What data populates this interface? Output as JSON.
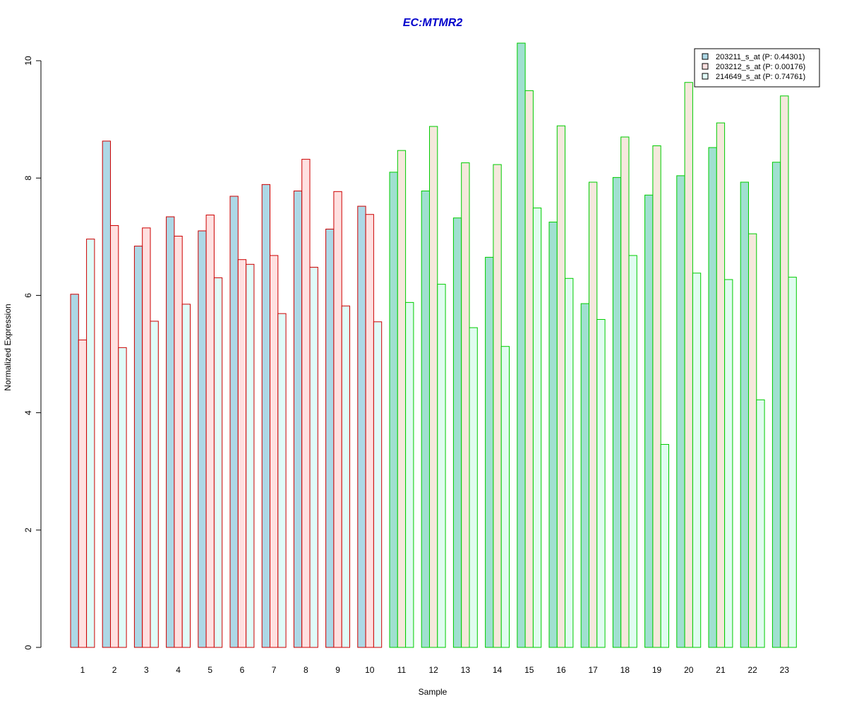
{
  "chart_data": {
    "type": "bar",
    "title": "EC:MTMR2",
    "xlabel": "Sample",
    "ylabel": "Normalized Expression",
    "ylim": [
      0,
      10.3
    ],
    "yticks": [
      0,
      2,
      4,
      6,
      8,
      10
    ],
    "categories": [
      "1",
      "2",
      "3",
      "4",
      "5",
      "6",
      "7",
      "8",
      "9",
      "10",
      "11",
      "12",
      "13",
      "14",
      "15",
      "16",
      "17",
      "18",
      "19",
      "20",
      "21",
      "22",
      "23"
    ],
    "group_border_colors": [
      "#cc0000",
      "#cc0000",
      "#cc0000",
      "#cc0000",
      "#cc0000",
      "#cc0000",
      "#cc0000",
      "#cc0000",
      "#cc0000",
      "#cc0000",
      "#00cc00",
      "#00cc00",
      "#00cc00",
      "#00cc00",
      "#00cc00",
      "#00cc00",
      "#00cc00",
      "#00cc00",
      "#00cc00",
      "#00cc00",
      "#00cc00",
      "#00cc00",
      "#00cc00"
    ],
    "series": [
      {
        "name": "203211_s_at (P: 0.44301)",
        "fill_red_group": "#add8e6",
        "fill_green_group": "#a0e0d0",
        "values": [
          6.02,
          8.63,
          6.84,
          7.34,
          7.1,
          7.69,
          7.89,
          7.78,
          7.13,
          7.52,
          8.1,
          7.78,
          7.32,
          6.65,
          10.3,
          7.25,
          5.86,
          8.01,
          7.71,
          8.04,
          8.52,
          7.93,
          8.27
        ]
      },
      {
        "name": "203212_s_at (P: 0.00176)",
        "fill_red_group": "#ffe0e0",
        "fill_green_group": "#f5e8dc",
        "values": [
          5.24,
          7.19,
          7.15,
          7.01,
          7.37,
          6.61,
          6.68,
          8.32,
          7.77,
          7.38,
          8.47,
          8.88,
          8.26,
          8.23,
          9.49,
          8.89,
          7.93,
          8.7,
          8.55,
          9.63,
          8.94,
          7.05,
          9.4
        ]
      },
      {
        "name": "214649_s_at (P: 0.74761)",
        "fill_red_group": "#e0fcf8",
        "fill_green_group": "#e0fcf0",
        "values": [
          6.96,
          5.11,
          5.56,
          5.85,
          6.3,
          6.53,
          5.69,
          6.48,
          5.82,
          5.55,
          5.88,
          6.19,
          5.45,
          5.13,
          7.49,
          6.29,
          5.59,
          6.68,
          3.46,
          6.38,
          6.27,
          4.22,
          6.31
        ]
      }
    ],
    "legend": {
      "position": "top-right",
      "swatches": [
        "#add8e6",
        "#ffe0e0",
        "#e0fcf8"
      ]
    },
    "colors": {
      "title": "#0000cc",
      "axis": "#000000"
    }
  }
}
